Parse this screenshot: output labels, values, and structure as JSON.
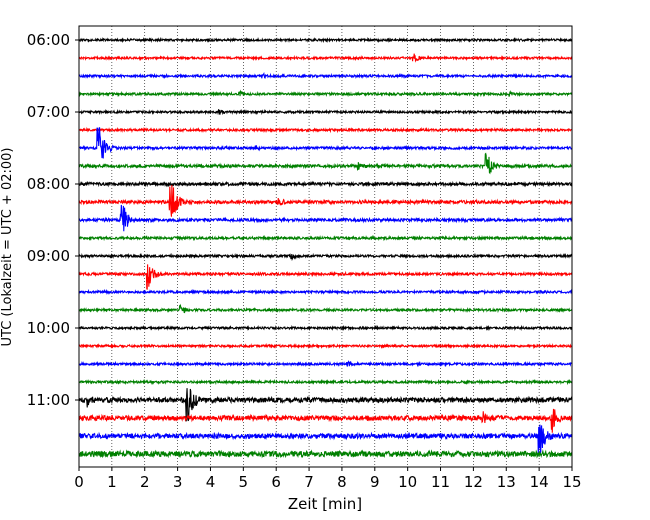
{
  "chart_data": {
    "type": "line",
    "title": "",
    "xlabel": "Zeit  [min]",
    "ylabel": "UTC (Lokalzeit = UTC + 02:00)",
    "xlim": [
      0,
      15
    ],
    "x_ticks": [
      "0",
      "1",
      "2",
      "3",
      "4",
      "5",
      "6",
      "7",
      "8",
      "9",
      "10",
      "11",
      "12",
      "13",
      "14",
      "15"
    ],
    "y_ticks": [
      "06:00",
      "07:00",
      "08:00",
      "09:00",
      "10:00",
      "11:00"
    ],
    "grid": "vertical dotted",
    "trace_start": "06:00",
    "trace_interval_min": 15,
    "trace_colors": [
      "#000000",
      "#ff0000",
      "#0000ff",
      "#008000"
    ],
    "traces": [
      {
        "start": "06:00",
        "color": "#000000",
        "amplitude": 0.13,
        "events": []
      },
      {
        "start": "06:15",
        "color": "#ff0000",
        "amplitude": 0.13,
        "events": [
          {
            "t": 10.2,
            "amp": 0.55
          }
        ]
      },
      {
        "start": "06:30",
        "color": "#0000ff",
        "amplitude": 0.14,
        "events": [
          {
            "t": 5.6,
            "amp": 0.4
          }
        ]
      },
      {
        "start": "06:45",
        "color": "#008000",
        "amplitude": 0.14,
        "events": [
          {
            "t": 4.9,
            "amp": 0.35
          },
          {
            "t": 13.1,
            "amp": 0.35
          }
        ]
      },
      {
        "start": "07:00",
        "color": "#000000",
        "amplitude": 0.13,
        "events": [
          {
            "t": 4.3,
            "amp": 0.45
          }
        ]
      },
      {
        "start": "07:15",
        "color": "#ff0000",
        "amplitude": 0.14,
        "events": []
      },
      {
        "start": "07:30",
        "color": "#0000ff",
        "amplitude": 0.15,
        "events": [
          {
            "t": 0.6,
            "amp": 3.0
          },
          {
            "t": 5.4,
            "amp": 0.3
          }
        ]
      },
      {
        "start": "07:45",
        "color": "#008000",
        "amplitude": 0.18,
        "events": [
          {
            "t": 12.4,
            "amp": 1.8
          },
          {
            "t": 8.5,
            "amp": 0.5
          },
          {
            "t": 9.1,
            "amp": 0.5
          }
        ]
      },
      {
        "start": "08:00",
        "color": "#000000",
        "amplitude": 0.18,
        "events": []
      },
      {
        "start": "08:15",
        "color": "#ff0000",
        "amplitude": 0.2,
        "events": [
          {
            "t": 2.8,
            "amp": 3.2
          },
          {
            "t": 6.1,
            "amp": 0.6
          }
        ]
      },
      {
        "start": "08:30",
        "color": "#0000ff",
        "amplitude": 0.18,
        "events": [
          {
            "t": 1.3,
            "amp": 2.6
          }
        ]
      },
      {
        "start": "08:45",
        "color": "#008000",
        "amplitude": 0.15,
        "events": []
      },
      {
        "start": "09:00",
        "color": "#000000",
        "amplitude": 0.14,
        "events": [
          {
            "t": 6.5,
            "amp": 0.4
          }
        ]
      },
      {
        "start": "09:15",
        "color": "#ff0000",
        "amplitude": 0.15,
        "events": [
          {
            "t": 2.1,
            "amp": 2.2
          }
        ]
      },
      {
        "start": "09:30",
        "color": "#0000ff",
        "amplitude": 0.14,
        "events": []
      },
      {
        "start": "09:45",
        "color": "#008000",
        "amplitude": 0.14,
        "events": [
          {
            "t": 3.1,
            "amp": 0.6
          }
        ]
      },
      {
        "start": "10:00",
        "color": "#000000",
        "amplitude": 0.13,
        "events": []
      },
      {
        "start": "10:15",
        "color": "#ff0000",
        "amplitude": 0.13,
        "events": []
      },
      {
        "start": "10:30",
        "color": "#0000ff",
        "amplitude": 0.14,
        "events": [
          {
            "t": 8.2,
            "amp": 0.35
          }
        ]
      },
      {
        "start": "10:45",
        "color": "#008000",
        "amplitude": 0.14,
        "events": []
      },
      {
        "start": "11:00",
        "color": "#000000",
        "amplitude": 0.3,
        "events": [
          {
            "t": 3.3,
            "amp": 3.4
          },
          {
            "t": 0.3,
            "amp": 1.0
          }
        ]
      },
      {
        "start": "11:15",
        "color": "#ff0000",
        "amplitude": 0.3,
        "events": [
          {
            "t": 14.4,
            "amp": 2.0
          },
          {
            "t": 12.3,
            "amp": 0.9
          }
        ]
      },
      {
        "start": "11:30",
        "color": "#0000ff",
        "amplitude": 0.3,
        "events": [
          {
            "t": 14.0,
            "amp": 3.2
          }
        ]
      },
      {
        "start": "11:45",
        "color": "#008000",
        "amplitude": 0.35,
        "events": [
          {
            "t": 4.6,
            "amp": 0.6
          }
        ]
      }
    ]
  }
}
